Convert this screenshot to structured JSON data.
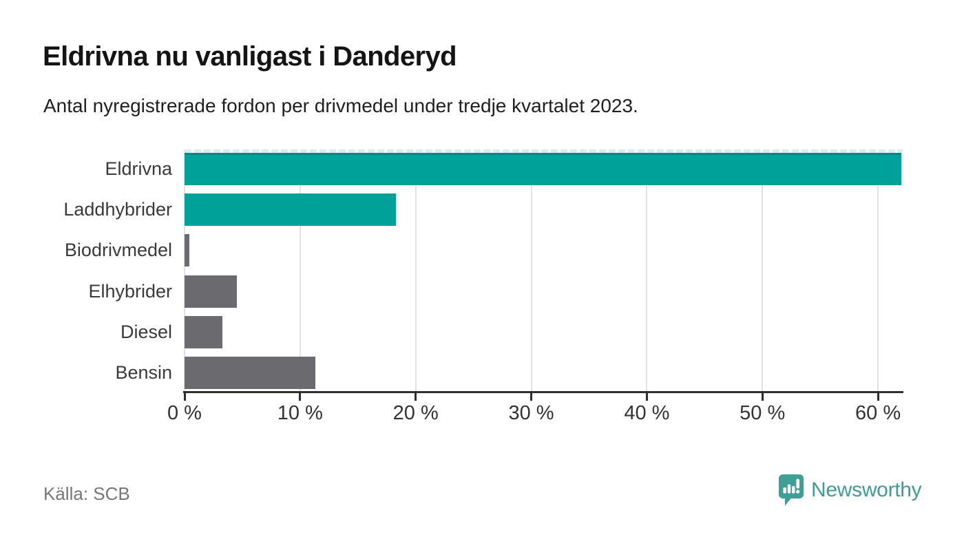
{
  "title": "Eldrivna nu vanligast i Danderyd",
  "subtitle": "Antal nyregistrerade fordon per drivmedel under tredje kvartalet 2023.",
  "source": "Källa: SCB",
  "brand": {
    "name": "Newsworthy",
    "icon": "newsworthy-pin-chart-icon",
    "color": "#3d9c94"
  },
  "colors": {
    "highlight_bar": "#00a199",
    "default_bar": "#6b6b6f",
    "gridline": "#e3e3e3",
    "axis": "#2e2e2e",
    "clip_dash": "#d4eef2",
    "background": "#ffffff"
  },
  "chart_data": {
    "type": "bar",
    "orientation": "horizontal",
    "title": "Eldrivna nu vanligast i Danderyd",
    "subtitle": "Antal nyregistrerade fordon per drivmedel under tredje kvartalet 2023.",
    "categories": [
      "Eldrivna",
      "Laddhybrider",
      "Biodrivmedel",
      "Elhybrider",
      "Diesel",
      "Bensin"
    ],
    "values": [
      62,
      18.3,
      0.4,
      4.5,
      3.3,
      11.3
    ],
    "unit": "%",
    "bar_colors": [
      "#00a199",
      "#00a199",
      "#6b6b6f",
      "#6b6b6f",
      "#6b6b6f",
      "#6b6b6f"
    ],
    "xlabel": "",
    "ylabel": "",
    "xlim": [
      0,
      62.2
    ],
    "x_tick_values": [
      0,
      10,
      20,
      30,
      40,
      50,
      60
    ],
    "x_tick_labels": [
      "0 %",
      "10 %",
      "20 %",
      "30 %",
      "40 %",
      "50 %",
      "60 %"
    ],
    "grid": true,
    "legend": false,
    "first_bar_clipped_at_axis_end": true
  }
}
